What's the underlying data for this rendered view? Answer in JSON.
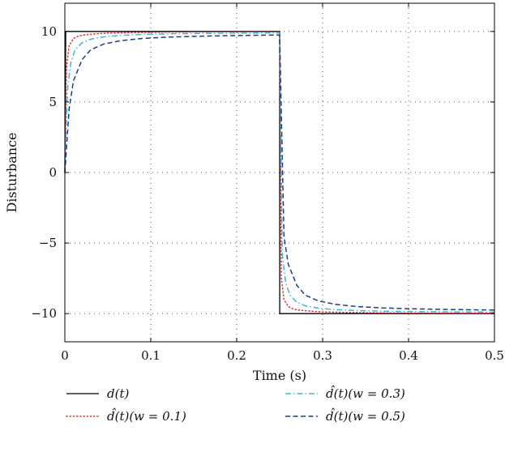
{
  "chart_data": {
    "type": "line",
    "title": "",
    "xlabel": "Time (s)",
    "ylabel": "Disturbance",
    "xlim": [
      0,
      0.5
    ],
    "ylim": [
      -12,
      12
    ],
    "xticks": [
      0,
      0.1,
      0.2,
      0.3,
      0.4,
      0.5
    ],
    "xtick_labels": [
      "0",
      "0.1",
      "0.2",
      "0.3",
      "0.4",
      "0.5"
    ],
    "yticks": [
      10,
      5,
      0,
      -5,
      -10
    ],
    "ytick_labels": [
      "10",
      "5",
      "0",
      "−5",
      "−10"
    ],
    "grid": true,
    "legend_placement": "below",
    "series": [
      {
        "name": "d(t)",
        "color": "#000000",
        "dash": "solid",
        "x": [
          0,
          0.001,
          0.25,
          0.2501,
          0.5
        ],
        "y": [
          0,
          10,
          10,
          -10,
          -10
        ]
      },
      {
        "name": "d̂(t)(w = 0.1)",
        "color": "#e0302a",
        "dash": "dotted",
        "x": [
          0,
          0.002,
          0.005,
          0.01,
          0.015,
          0.02,
          0.03,
          0.05,
          0.08,
          0.12,
          0.18,
          0.25,
          0.252,
          0.255,
          0.26,
          0.265,
          0.27,
          0.28,
          0.3,
          0.33,
          0.37,
          0.43,
          0.5
        ],
        "y": [
          0,
          7.5,
          9.0,
          9.5,
          9.65,
          9.73,
          9.8,
          9.88,
          9.92,
          9.95,
          9.97,
          9.98,
          -7.5,
          -9.0,
          -9.5,
          -9.65,
          -9.73,
          -9.8,
          -9.88,
          -9.92,
          -9.95,
          -9.97,
          -9.98
        ]
      },
      {
        "name": "d̂(t)(w = 0.3)",
        "color": "#3fb6d6",
        "dash": "dashdot",
        "x": [
          0,
          0.003,
          0.007,
          0.012,
          0.02,
          0.03,
          0.045,
          0.065,
          0.09,
          0.13,
          0.18,
          0.25,
          0.253,
          0.257,
          0.262,
          0.27,
          0.28,
          0.295,
          0.315,
          0.34,
          0.38,
          0.43,
          0.5
        ],
        "y": [
          0,
          5.8,
          7.8,
          8.7,
          9.2,
          9.45,
          9.62,
          9.72,
          9.79,
          9.84,
          9.87,
          9.9,
          -5.8,
          -7.8,
          -8.7,
          -9.2,
          -9.45,
          -9.62,
          -9.72,
          -9.79,
          -9.84,
          -9.87,
          -9.9
        ]
      },
      {
        "name": "d̂(t)(w = 0.5)",
        "color": "#1f3b8c",
        "dash": "dashed",
        "x": [
          0,
          0.005,
          0.01,
          0.02,
          0.03,
          0.045,
          0.065,
          0.09,
          0.12,
          0.16,
          0.21,
          0.25,
          0.255,
          0.26,
          0.27,
          0.28,
          0.295,
          0.315,
          0.34,
          0.37,
          0.41,
          0.46,
          0.5
        ],
        "y": [
          0,
          4.5,
          6.5,
          8.0,
          8.7,
          9.1,
          9.35,
          9.5,
          9.6,
          9.67,
          9.72,
          9.75,
          -4.5,
          -6.5,
          -8.0,
          -8.7,
          -9.1,
          -9.35,
          -9.5,
          -9.6,
          -9.67,
          -9.72,
          -9.75
        ]
      }
    ]
  }
}
